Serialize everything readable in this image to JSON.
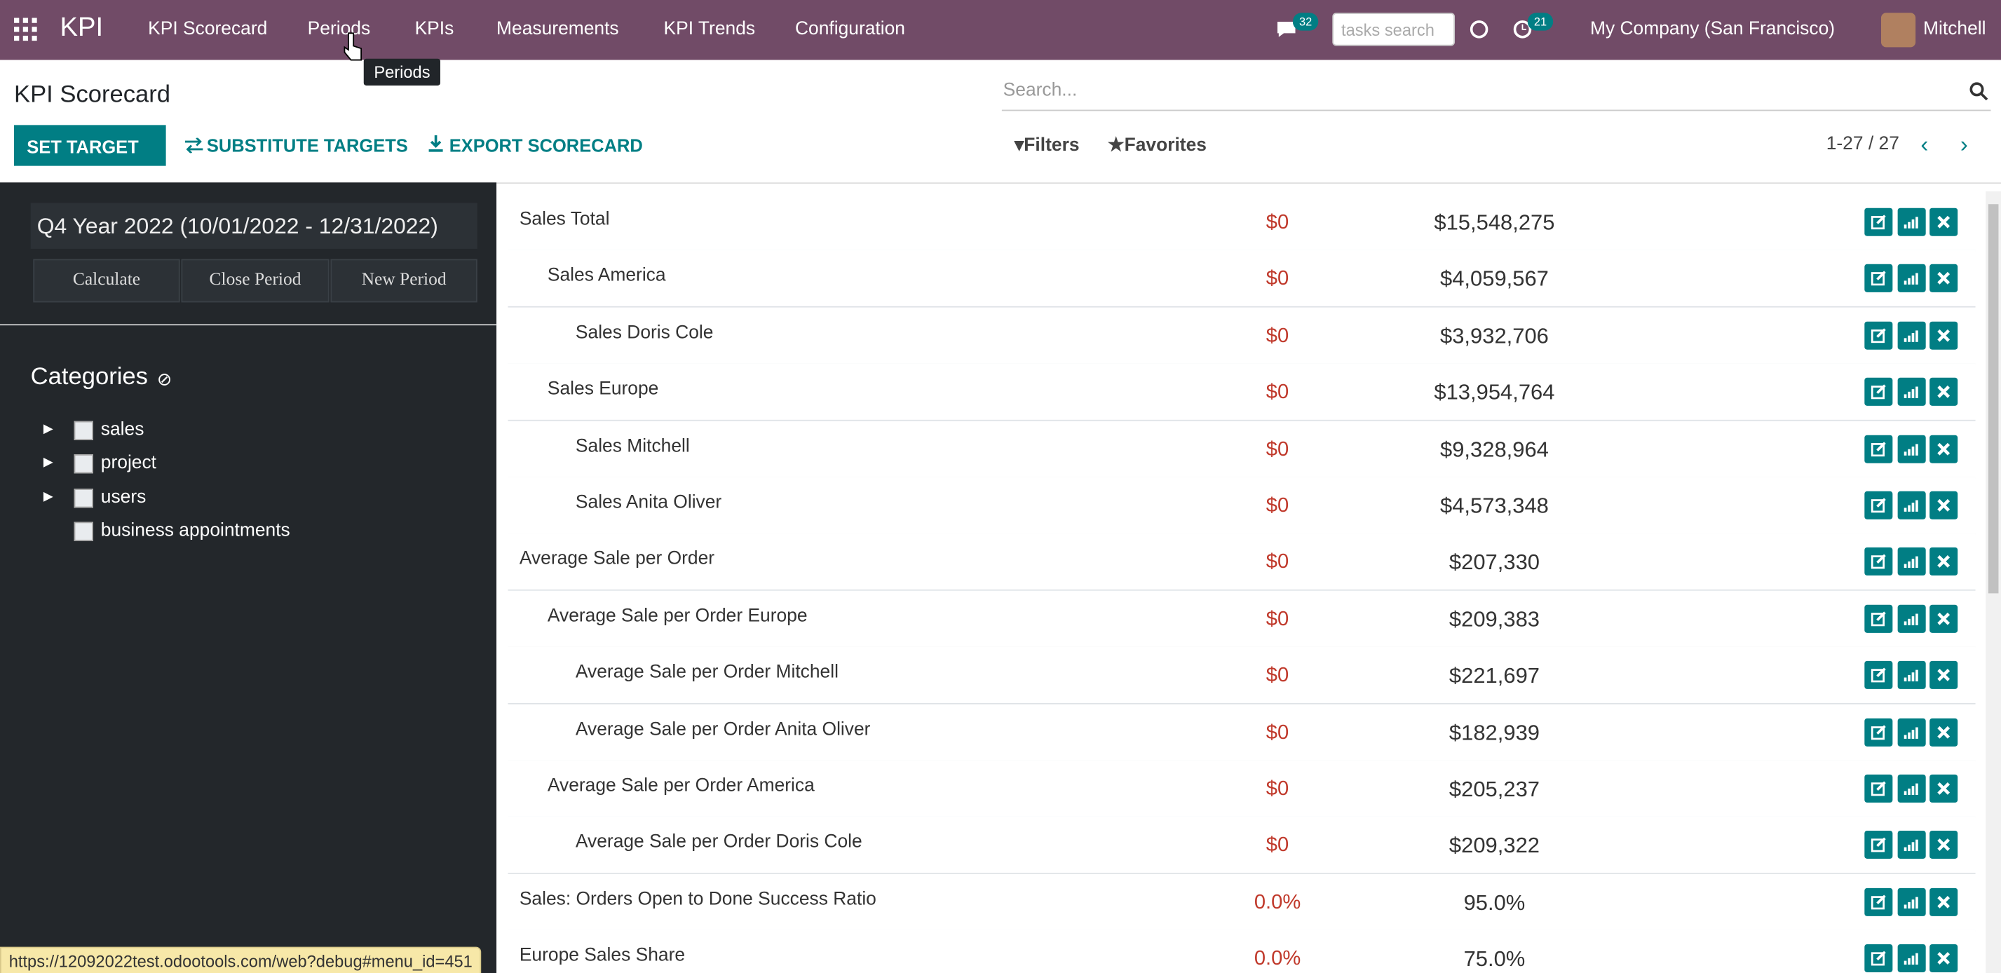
{
  "navbar": {
    "app": "KPI",
    "menu": [
      "KPI Scorecard",
      "Periods",
      "KPIs",
      "Measurements",
      "KPI Trends",
      "Configuration"
    ],
    "messages_count": "32",
    "search_placeholder": "tasks search",
    "activities_count": "21",
    "company": "My Company (San Francisco)",
    "user": "Mitchell"
  },
  "tooltip": "Periods",
  "control_panel": {
    "title": "KPI Scorecard",
    "buttons": [
      "SET TARGET",
      "SUBSTITUTE TARGETS",
      "EXPORT SCORECARD"
    ],
    "search_placeholder": "Search...",
    "filters": "Filters",
    "favorites": "Favorites",
    "pager": "1-27 / 27"
  },
  "sidebar": {
    "period": "Q4 Year 2022 (10/01/2022 - 12/31/2022)",
    "actions": [
      "Calculate",
      "Close Period",
      "New Period"
    ],
    "categories_title": "Categories",
    "categories": [
      "sales",
      "project",
      "users",
      "business appointments"
    ]
  },
  "table": {
    "rows": [
      [
        "Sales Total",
        "$0",
        "$15,548,275"
      ],
      [
        "Sales America",
        "$0",
        "$4,059,567"
      ],
      [
        "Sales Doris Cole",
        "$0",
        "$3,932,706"
      ],
      [
        "Sales Europe",
        "$0",
        "$13,954,764"
      ],
      [
        "Sales Mitchell",
        "$0",
        "$9,328,964"
      ],
      [
        "Sales Anita Oliver",
        "$0",
        "$4,573,348"
      ],
      [
        "Average Sale per Order",
        "$0",
        "$207,330"
      ],
      [
        "Average Sale per Order Europe",
        "$0",
        "$209,383"
      ],
      [
        "Average Sale per Order Mitchell",
        "$0",
        "$221,697"
      ],
      [
        "Average Sale per Order Anita Oliver",
        "$0",
        "$182,939"
      ],
      [
        "Average Sale per Order America",
        "$0",
        "$205,237"
      ],
      [
        "Average Sale per Order Doris Cole",
        "$0",
        "$209,322"
      ],
      [
        "Sales: Orders Open to Done Success Ratio",
        "0.0%",
        "95.0%"
      ],
      [
        "Europe Sales Share",
        "0.0%",
        "75.0%"
      ]
    ]
  },
  "status_url": "https://12092022test.odootools.com/web?debug#menu_id=451"
}
